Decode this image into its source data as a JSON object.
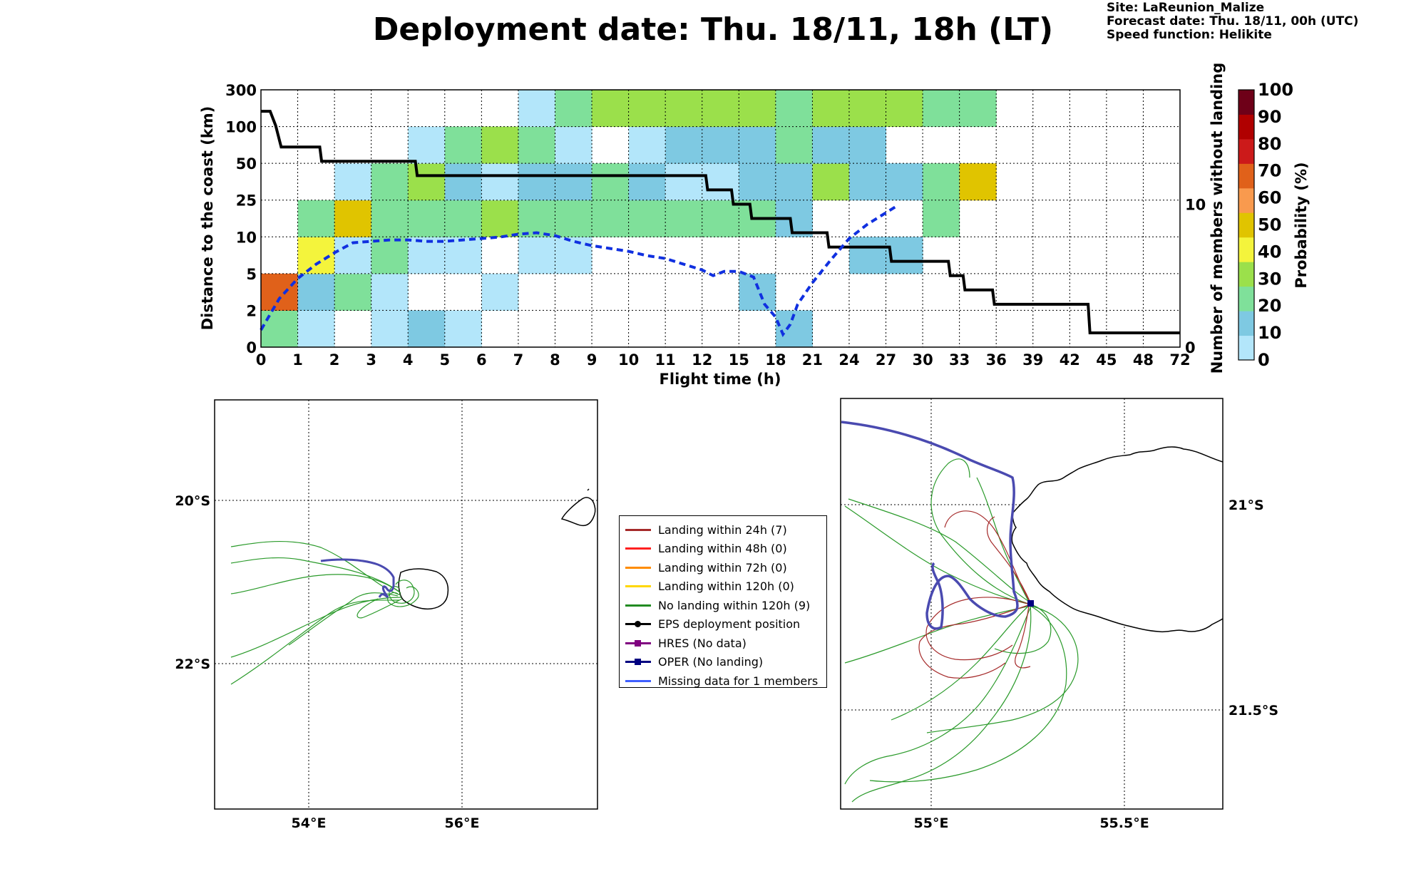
{
  "header": {
    "title": "Deployment date: Thu. 18/11, 18h (LT)",
    "site": "Site: LaReunion_Malize",
    "forecast": "Forecast date: Thu. 18/11, 00h (UTC)",
    "speed": "Speed function: Helikite"
  },
  "chart_data": [
    {
      "type": "heatmap",
      "xlabel": "Flight time (h)",
      "ylabel": "Distance to the coast (km)",
      "y2label": "Number of members without landing",
      "colorbar_label": "Probability (%)",
      "x_ticks": [
        "0",
        "1",
        "2",
        "3",
        "4",
        "5",
        "6",
        "7",
        "8",
        "9",
        "10",
        "11",
        "12",
        "15",
        "18",
        "21",
        "24",
        "27",
        "30",
        "33",
        "36",
        "39",
        "42",
        "45",
        "48",
        "72"
      ],
      "y_ticks": [
        "0",
        "2",
        "5",
        "10",
        "25",
        "50",
        "100",
        "300"
      ],
      "y2_ticks": [
        "0",
        "10"
      ],
      "colorbar_ticks": [
        "0",
        "10",
        "20",
        "30",
        "40",
        "50",
        "60",
        "70",
        "80",
        "90",
        "100"
      ],
      "colorbar_colors": [
        "#b3e6fa",
        "#7ec9e2",
        "#7fe09a",
        "#9be04b",
        "#f4f43c",
        "#e0c400",
        "#f99a4e",
        "#e0611a",
        "#cc1a1a",
        "#b00000",
        "#6e0018"
      ],
      "grid": true,
      "cells": [
        {
          "x": 0,
          "y": 0,
          "value": 20
        },
        {
          "x": 1,
          "y": 0,
          "value": 5
        },
        {
          "x": 3,
          "y": 0,
          "value": 5
        },
        {
          "x": 4,
          "y": 0,
          "value": 15
        },
        {
          "x": 5,
          "y": 0,
          "value": 5
        },
        {
          "x": 14,
          "y": 0,
          "value": 15
        },
        {
          "x": 0,
          "y": 1,
          "value": 75
        },
        {
          "x": 1,
          "y": 1,
          "value": 15
        },
        {
          "x": 2,
          "y": 1,
          "value": 25
        },
        {
          "x": 3,
          "y": 1,
          "value": 5
        },
        {
          "x": 6,
          "y": 1,
          "value": 5
        },
        {
          "x": 13,
          "y": 1,
          "value": 15
        },
        {
          "x": 1,
          "y": 2,
          "value": 45
        },
        {
          "x": 2,
          "y": 2,
          "value": 5
        },
        {
          "x": 3,
          "y": 2,
          "value": 25
        },
        {
          "x": 4,
          "y": 2,
          "value": 5
        },
        {
          "x": 5,
          "y": 2,
          "value": 5
        },
        {
          "x": 7,
          "y": 2,
          "value": 5
        },
        {
          "x": 8,
          "y": 2,
          "value": 5
        },
        {
          "x": 16,
          "y": 2,
          "value": 15
        },
        {
          "x": 17,
          "y": 2,
          "value": 15
        },
        {
          "x": 1,
          "y": 3,
          "value": 25
        },
        {
          "x": 2,
          "y": 3,
          "value": 55
        },
        {
          "x": 3,
          "y": 3,
          "value": 25
        },
        {
          "x": 4,
          "y": 3,
          "value": 25
        },
        {
          "x": 5,
          "y": 3,
          "value": 25
        },
        {
          "x": 6,
          "y": 3,
          "value": 35
        },
        {
          "x": 7,
          "y": 3,
          "value": 25
        },
        {
          "x": 8,
          "y": 3,
          "value": 25
        },
        {
          "x": 9,
          "y": 3,
          "value": 25
        },
        {
          "x": 10,
          "y": 3,
          "value": 25
        },
        {
          "x": 11,
          "y": 3,
          "value": 25
        },
        {
          "x": 12,
          "y": 3,
          "value": 25
        },
        {
          "x": 13,
          "y": 3,
          "value": 25
        },
        {
          "x": 14,
          "y": 3,
          "value": 15
        },
        {
          "x": 18,
          "y": 3,
          "value": 25
        },
        {
          "x": 2,
          "y": 4,
          "value": 5
        },
        {
          "x": 3,
          "y": 4,
          "value": 25
        },
        {
          "x": 4,
          "y": 4,
          "value": 35
        },
        {
          "x": 5,
          "y": 4,
          "value": 15
        },
        {
          "x": 6,
          "y": 4,
          "value": 5
        },
        {
          "x": 7,
          "y": 4,
          "value": 15
        },
        {
          "x": 8,
          "y": 4,
          "value": 15
        },
        {
          "x": 9,
          "y": 4,
          "value": 25
        },
        {
          "x": 10,
          "y": 4,
          "value": 15
        },
        {
          "x": 11,
          "y": 4,
          "value": 5
        },
        {
          "x": 12,
          "y": 4,
          "value": 5
        },
        {
          "x": 13,
          "y": 4,
          "value": 15
        },
        {
          "x": 14,
          "y": 4,
          "value": 15
        },
        {
          "x": 15,
          "y": 4,
          "value": 35
        },
        {
          "x": 16,
          "y": 4,
          "value": 15
        },
        {
          "x": 17,
          "y": 4,
          "value": 15
        },
        {
          "x": 18,
          "y": 4,
          "value": 25
        },
        {
          "x": 19,
          "y": 4,
          "value": 55
        },
        {
          "x": 4,
          "y": 5,
          "value": 5
        },
        {
          "x": 5,
          "y": 5,
          "value": 25
        },
        {
          "x": 6,
          "y": 5,
          "value": 35
        },
        {
          "x": 7,
          "y": 5,
          "value": 25
        },
        {
          "x": 8,
          "y": 5,
          "value": 5
        },
        {
          "x": 10,
          "y": 5,
          "value": 5
        },
        {
          "x": 11,
          "y": 5,
          "value": 15
        },
        {
          "x": 12,
          "y": 5,
          "value": 15
        },
        {
          "x": 13,
          "y": 5,
          "value": 15
        },
        {
          "x": 14,
          "y": 5,
          "value": 25
        },
        {
          "x": 15,
          "y": 5,
          "value": 15
        },
        {
          "x": 16,
          "y": 5,
          "value": 15
        },
        {
          "x": 7,
          "y": 6,
          "value": 5
        },
        {
          "x": 8,
          "y": 6,
          "value": 25
        },
        {
          "x": 9,
          "y": 6,
          "value": 35
        },
        {
          "x": 10,
          "y": 6,
          "value": 35
        },
        {
          "x": 11,
          "y": 6,
          "value": 35
        },
        {
          "x": 12,
          "y": 6,
          "value": 35
        },
        {
          "x": 13,
          "y": 6,
          "value": 35
        },
        {
          "x": 14,
          "y": 6,
          "value": 25
        },
        {
          "x": 15,
          "y": 6,
          "value": 35
        },
        {
          "x": 16,
          "y": 6,
          "value": 35
        },
        {
          "x": 17,
          "y": 6,
          "value": 35
        },
        {
          "x": 18,
          "y": 6,
          "value": 25
        },
        {
          "x": 19,
          "y": 6,
          "value": 25
        }
      ],
      "series": [
        {
          "name": "",
          "style": "solid black",
          "x": [
            0,
            0.25,
            0.4,
            0.55,
            1.6,
            1.65,
            4.2,
            4.25,
            12.1,
            12.15,
            12.8,
            12.85,
            13.3,
            13.35,
            14.4,
            14.45,
            15.4,
            15.45,
            17.1,
            17.15,
            18.7,
            18.75,
            19.1,
            19.15,
            19.9,
            19.95,
            22.5,
            22.55,
            25
          ],
          "y_members": [
            16.5,
            16.5,
            15.5,
            14,
            14,
            13,
            13,
            12,
            12,
            11,
            11,
            10,
            10,
            9,
            9,
            8,
            8,
            7,
            7,
            6,
            6,
            5,
            5,
            4,
            4,
            3,
            3,
            1,
            1
          ]
        },
        {
          "name": "",
          "style": "dashed blue",
          "x": [
            0,
            0.5,
            1,
            1.5,
            2,
            2.5,
            3,
            3.5,
            4,
            4.5,
            5,
            5.5,
            6,
            6.5,
            7,
            7.5,
            8,
            8.5,
            9,
            9.5,
            10,
            10.5,
            11,
            11.5,
            12,
            12.3,
            12.6,
            13,
            13.4,
            13.7,
            14,
            14.2,
            14.4,
            14.6,
            15,
            15.5,
            16,
            16.5,
            17,
            17.25
          ],
          "y_members": [
            1.2,
            3.4,
            4.8,
            5.8,
            6.6,
            7.3,
            7.4,
            7.5,
            7.5,
            7.4,
            7.4,
            7.5,
            7.6,
            7.7,
            7.9,
            8.0,
            7.8,
            7.4,
            7.1,
            6.9,
            6.7,
            6.4,
            6.2,
            5.8,
            5.4,
            5.0,
            5.3,
            5.3,
            4.9,
            3.0,
            2.1,
            0.9,
            1.6,
            3.0,
            4.5,
            6.1,
            7.6,
            8.6,
            9.4,
            9.8
          ]
        }
      ]
    },
    {
      "type": "map",
      "x_ticks": [
        "54°E",
        "56°E"
      ],
      "y_ticks": [
        "20°S",
        "22°S"
      ],
      "grid": true
    },
    {
      "type": "map",
      "x_ticks": [
        "55°E",
        "55.5°E"
      ],
      "y_ticks": [
        "21°S",
        "21.5°S"
      ],
      "grid": true
    }
  ],
  "legend": [
    {
      "label": "Landing within 24h (7)",
      "color": "#a52a2a",
      "marker": "none"
    },
    {
      "label": "Landing within 48h (0)",
      "color": "#ff2020",
      "marker": "none"
    },
    {
      "label": "Landing within 72h (0)",
      "color": "#ff8c00",
      "marker": "none"
    },
    {
      "label": "Landing within 120h (0)",
      "color": "#ffd700",
      "marker": "none"
    },
    {
      "label": "No landing within 120h (9)",
      "color": "#228b22",
      "marker": "none"
    },
    {
      "label": "EPS deployment position",
      "color": "#000000",
      "marker": "circle"
    },
    {
      "label": "HRES (No data)",
      "color": "#800080",
      "marker": "square"
    },
    {
      "label": "OPER (No landing)",
      "color": "#000080",
      "marker": "square"
    },
    {
      "label": "Missing data for 1 members",
      "color": "#4060ff",
      "marker": "none"
    }
  ]
}
